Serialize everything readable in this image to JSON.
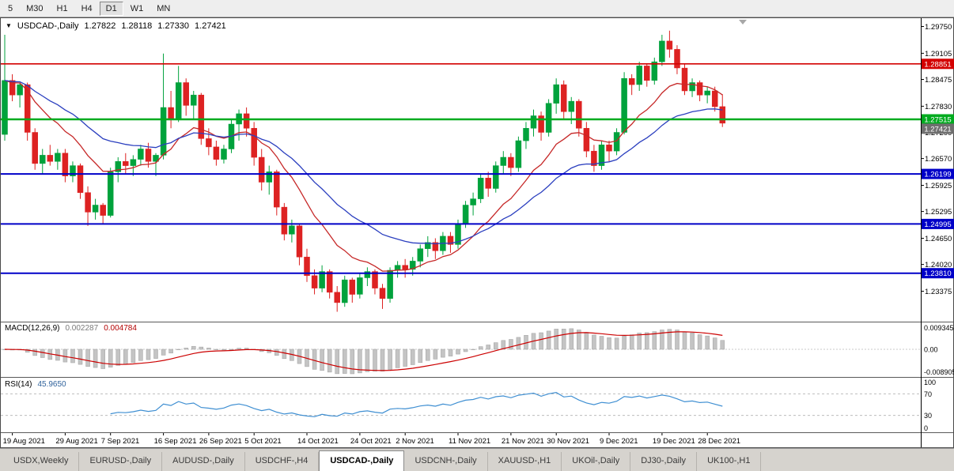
{
  "toolbar": {
    "timeframes": [
      {
        "label": "5",
        "active": false
      },
      {
        "label": "M30",
        "active": false
      },
      {
        "label": "H1",
        "active": false
      },
      {
        "label": "H4",
        "active": false
      },
      {
        "label": "D1",
        "active": true
      },
      {
        "label": "W1",
        "active": false
      },
      {
        "label": "MN",
        "active": false
      }
    ]
  },
  "tabs": {
    "items": [
      {
        "label": "USDX,Weekly",
        "active": false
      },
      {
        "label": "EURUSD-,Daily",
        "active": false
      },
      {
        "label": "AUDUSD-,Daily",
        "active": false
      },
      {
        "label": "USDCHF-,H4",
        "active": false
      },
      {
        "label": "USDCAD-,Daily",
        "active": true
      },
      {
        "label": "USDCNH-,Daily",
        "active": false
      },
      {
        "label": "XAUUSD-,H1",
        "active": false
      },
      {
        "label": "UKOil-,Daily",
        "active": false
      },
      {
        "label": "DJ30-,Daily",
        "active": false
      },
      {
        "label": "UK100-,H1",
        "active": false
      }
    ]
  },
  "chart_data": {
    "type": "candlestick",
    "title": {
      "icon": "▼",
      "symbol": "USDCAD-,Daily",
      "open": "1.27822",
      "high": "1.28118",
      "low": "1.27330",
      "close": "1.27421"
    },
    "colors": {
      "up": "#00a23c",
      "down": "#dd2222",
      "background": "#ffffff",
      "border": "#4a4a4a"
    },
    "price_axis": {
      "min": 1.227,
      "max": 1.2995,
      "ticks": [
        "1.29750",
        "1.29105",
        "1.28475",
        "1.27830",
        "1.27200",
        "1.26570",
        "1.25925",
        "1.25295",
        "1.24650",
        "1.24020",
        "1.23375"
      ]
    },
    "hlines": [
      {
        "price": 1.28851,
        "label": "1.28851",
        "color": "#d30000",
        "width": 1.6
      },
      {
        "price": 1.27515,
        "label": "1.27515",
        "color": "#00ab1f",
        "width": 2.6
      },
      {
        "price": 1.26199,
        "label": "1.26199",
        "color": "#0000c8",
        "width": 2
      },
      {
        "price": 1.24995,
        "label": "1.24995",
        "color": "#0000c8",
        "width": 2
      },
      {
        "price": 1.2381,
        "label": "1.23810",
        "color": "#0000c8",
        "width": 2
      }
    ],
    "current_price": {
      "value": 1.27421,
      "label": "1.27421",
      "badge_color": "#6f6f6f"
    },
    "ma": [
      {
        "type": "ema",
        "period": 12,
        "color": "#c62828"
      },
      {
        "type": "ema",
        "period": 26,
        "color": "#2b3fbf"
      }
    ],
    "candles": [
      [
        1.2715,
        1.2955,
        1.27,
        1.2845
      ],
      [
        1.2845,
        1.286,
        1.2795,
        1.281
      ],
      [
        1.281,
        1.284,
        1.278,
        1.2835
      ],
      [
        1.2835,
        1.284,
        1.27,
        1.272
      ],
      [
        1.272,
        1.273,
        1.263,
        1.2645
      ],
      [
        1.2645,
        1.268,
        1.262,
        1.2665
      ],
      [
        1.2665,
        1.269,
        1.264,
        1.265
      ],
      [
        1.265,
        1.268,
        1.263,
        1.267
      ],
      [
        1.267,
        1.268,
        1.26,
        1.2615
      ],
      [
        1.2615,
        1.265,
        1.26,
        1.264
      ],
      [
        1.264,
        1.2645,
        1.256,
        1.2575
      ],
      [
        1.2575,
        1.259,
        1.2495,
        1.2528
      ],
      [
        1.2528,
        1.256,
        1.251,
        1.2545
      ],
      [
        1.2545,
        1.255,
        1.25,
        1.252
      ],
      [
        1.252,
        1.2635,
        1.2515,
        1.2625
      ],
      [
        1.2625,
        1.266,
        1.26,
        1.265
      ],
      [
        1.265,
        1.267,
        1.262,
        1.264
      ],
      [
        1.264,
        1.2665,
        1.2615,
        1.2655
      ],
      [
        1.2655,
        1.269,
        1.264,
        1.268
      ],
      [
        1.268,
        1.2695,
        1.2635,
        1.265
      ],
      [
        1.265,
        1.267,
        1.2615,
        1.2665
      ],
      [
        1.2665,
        1.291,
        1.2655,
        1.278
      ],
      [
        1.278,
        1.282,
        1.273,
        1.275
      ],
      [
        1.275,
        1.288,
        1.2745,
        1.284
      ],
      [
        1.284,
        1.285,
        1.276,
        1.2785
      ],
      [
        1.2785,
        1.282,
        1.275,
        1.281
      ],
      [
        1.281,
        1.2815,
        1.269,
        1.2705
      ],
      [
        1.2705,
        1.273,
        1.2665,
        1.2685
      ],
      [
        1.2685,
        1.27,
        1.264,
        1.2655
      ],
      [
        1.2655,
        1.269,
        1.2645,
        1.268
      ],
      [
        1.268,
        1.275,
        1.267,
        1.274
      ],
      [
        1.274,
        1.2775,
        1.27,
        1.2765
      ],
      [
        1.2765,
        1.278,
        1.271,
        1.273
      ],
      [
        1.273,
        1.2745,
        1.264,
        1.266
      ],
      [
        1.266,
        1.268,
        1.258,
        1.26
      ],
      [
        1.26,
        1.264,
        1.257,
        1.2625
      ],
      [
        1.2625,
        1.263,
        1.252,
        1.254
      ],
      [
        1.254,
        1.255,
        1.246,
        1.2475
      ],
      [
        1.2475,
        1.251,
        1.2455,
        1.2495
      ],
      [
        1.2495,
        1.25,
        1.24,
        1.242
      ],
      [
        1.242,
        1.244,
        1.236,
        1.2375
      ],
      [
        1.2375,
        1.239,
        1.233,
        1.2345
      ],
      [
        1.2345,
        1.24,
        1.2335,
        1.2385
      ],
      [
        1.2385,
        1.239,
        1.232,
        1.2335
      ],
      [
        1.2335,
        1.235,
        1.2288,
        1.231
      ],
      [
        1.231,
        1.2375,
        1.23,
        1.2365
      ],
      [
        1.2365,
        1.237,
        1.231,
        1.233
      ],
      [
        1.233,
        1.238,
        1.232,
        1.237
      ],
      [
        1.237,
        1.2395,
        1.235,
        1.2385
      ],
      [
        1.2385,
        1.239,
        1.233,
        1.2345
      ],
      [
        1.2345,
        1.2355,
        1.2295,
        1.232
      ],
      [
        1.232,
        1.2395,
        1.231,
        1.2388
      ],
      [
        1.2388,
        1.241,
        1.237,
        1.24
      ],
      [
        1.24,
        1.2415,
        1.237,
        1.239
      ],
      [
        1.239,
        1.242,
        1.2375,
        1.241
      ],
      [
        1.241,
        1.245,
        1.2395,
        1.244
      ],
      [
        1.244,
        1.247,
        1.242,
        1.2455
      ],
      [
        1.2455,
        1.2465,
        1.2415,
        1.2435
      ],
      [
        1.2435,
        1.248,
        1.2425,
        1.247
      ],
      [
        1.247,
        1.248,
        1.243,
        1.245
      ],
      [
        1.245,
        1.251,
        1.244,
        1.25
      ],
      [
        1.25,
        1.2555,
        1.249,
        1.2545
      ],
      [
        1.2545,
        1.2575,
        1.252,
        1.256
      ],
      [
        1.256,
        1.262,
        1.255,
        1.261
      ],
      [
        1.261,
        1.2625,
        1.2565,
        1.2585
      ],
      [
        1.2585,
        1.265,
        1.2575,
        1.264
      ],
      [
        1.264,
        1.2675,
        1.262,
        1.266
      ],
      [
        1.266,
        1.267,
        1.2615,
        1.2635
      ],
      [
        1.2635,
        1.271,
        1.2625,
        1.27
      ],
      [
        1.27,
        1.2745,
        1.268,
        1.273
      ],
      [
        1.273,
        1.2775,
        1.271,
        1.276
      ],
      [
        1.276,
        1.277,
        1.27,
        1.272
      ],
      [
        1.272,
        1.28,
        1.271,
        1.279
      ],
      [
        1.279,
        1.285,
        1.2765,
        1.2835
      ],
      [
        1.2835,
        1.2845,
        1.275,
        1.277
      ],
      [
        1.277,
        1.2805,
        1.274,
        1.2795
      ],
      [
        1.2795,
        1.28,
        1.271,
        1.273
      ],
      [
        1.273,
        1.2745,
        1.266,
        1.2675
      ],
      [
        1.2675,
        1.269,
        1.2625,
        1.264
      ],
      [
        1.264,
        1.27,
        1.263,
        1.269
      ],
      [
        1.269,
        1.27,
        1.265,
        1.2675
      ],
      [
        1.2675,
        1.273,
        1.2665,
        1.272
      ],
      [
        1.272,
        1.2865,
        1.2715,
        1.285
      ],
      [
        1.285,
        1.286,
        1.281,
        1.2835
      ],
      [
        1.2835,
        1.289,
        1.282,
        1.288
      ],
      [
        1.288,
        1.2885,
        1.283,
        1.2845
      ],
      [
        1.2845,
        1.29,
        1.2835,
        1.289
      ],
      [
        1.289,
        1.2955,
        1.288,
        1.294
      ],
      [
        1.294,
        1.2965,
        1.29,
        1.292
      ],
      [
        1.292,
        1.293,
        1.286,
        1.2875
      ],
      [
        1.2875,
        1.2885,
        1.281,
        1.282
      ],
      [
        1.282,
        1.285,
        1.2805,
        1.284
      ],
      [
        1.284,
        1.2845,
        1.2795,
        1.281
      ],
      [
        1.281,
        1.283,
        1.279,
        1.282
      ],
      [
        1.282,
        1.283,
        1.277,
        1.2782
      ],
      [
        1.2782,
        1.2812,
        1.2733,
        1.2742
      ]
    ],
    "date_labels": [
      {
        "index": 1,
        "label": "19 Aug 2021"
      },
      {
        "index": 8,
        "label": "29 Aug 2021"
      },
      {
        "index": 14,
        "label": "7 Sep 2021"
      },
      {
        "index": 21,
        "label": "16 Sep 2021"
      },
      {
        "index": 27,
        "label": "26 Sep 2021"
      },
      {
        "index": 33,
        "label": "5 Oct 2021"
      },
      {
        "index": 40,
        "label": "14 Oct 2021"
      },
      {
        "index": 47,
        "label": "24 Oct 2021"
      },
      {
        "index": 53,
        "label": "2 Nov 2021"
      },
      {
        "index": 60,
        "label": "11 Nov 2021"
      },
      {
        "index": 67,
        "label": "21 Nov 2021"
      },
      {
        "index": 73,
        "label": "30 Nov 2021"
      },
      {
        "index": 80,
        "label": "9 Dec 2021"
      },
      {
        "index": 87,
        "label": "19 Dec 2021"
      },
      {
        "index": 93,
        "label": "28 Dec 2021"
      }
    ],
    "macd": {
      "label": "MACD(12,26,9)",
      "value": "0.002287",
      "signal_value": "0.004784",
      "fast": 12,
      "slow": 26,
      "signal": 9,
      "axis": [
        "0.009345",
        "0.00",
        "-0.008905"
      ],
      "hist_color": "#c4c4c4",
      "hist_stroke": "#a0a0a0",
      "signal_color": "#cc0000"
    },
    "rsi": {
      "label": "RSI(14)",
      "value": "45.9650",
      "period": 14,
      "levels": [
        70,
        30
      ],
      "axis": [
        "100",
        "70",
        "30",
        "0"
      ],
      "color": "#3f8fd2"
    }
  }
}
